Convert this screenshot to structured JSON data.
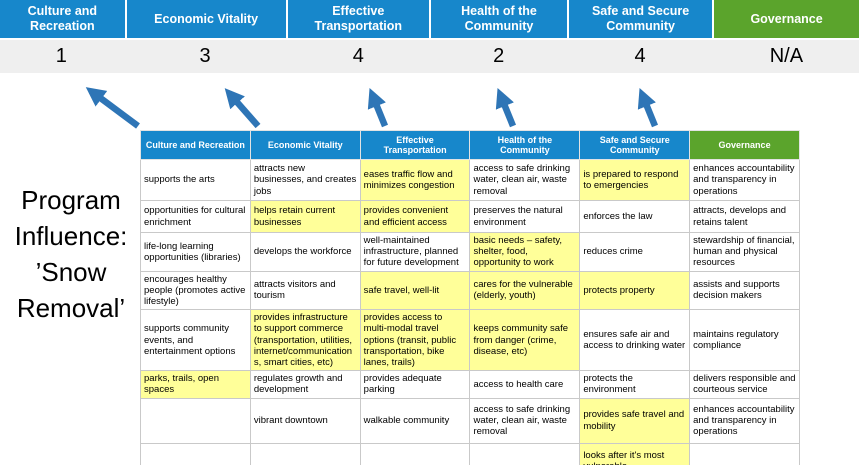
{
  "title": "Program Influence: ’Snow Removal’",
  "colors": {
    "header_blue": "#1787CB",
    "header_green": "#5BA42C",
    "highlight_yellow": "#FFFF99",
    "score_band_gray": "#EFEFEF",
    "arrow_blue": "#2E75B6"
  },
  "pillars": [
    {
      "label": "Culture and Recreation",
      "score": "1",
      "theme": "blue"
    },
    {
      "label": "Economic Vitality",
      "score": "3",
      "theme": "blue"
    },
    {
      "label": "Effective Transportation",
      "score": "4",
      "theme": "blue"
    },
    {
      "label": "Health of the Community",
      "score": "2",
      "theme": "blue"
    },
    {
      "label": "Safe and Secure Community",
      "score": "4",
      "theme": "blue"
    },
    {
      "label": "Governance",
      "score": "N/A",
      "theme": "green"
    }
  ],
  "table": {
    "headers": [
      {
        "label": "Culture and Recreation",
        "theme": "blue"
      },
      {
        "label": "Economic Vitality",
        "theme": "blue"
      },
      {
        "label": "Effective Transportation",
        "theme": "blue"
      },
      {
        "label": "Health of the Community",
        "theme": "blue"
      },
      {
        "label": "Safe and Secure Community",
        "theme": "blue"
      },
      {
        "label": "Governance",
        "theme": "green"
      }
    ],
    "rows": [
      [
        {
          "text": "supports the arts",
          "highlighted": false
        },
        {
          "text": "attracts new businesses, and creates jobs",
          "highlighted": false
        },
        {
          "text": "eases traffic flow and minimizes congestion",
          "highlighted": true
        },
        {
          "text": "access to safe drinking water, clean air, waste removal",
          "highlighted": false
        },
        {
          "text": "is prepared to respond to emergencies",
          "highlighted": true
        },
        {
          "text": "enhances accountability and transparency in operations",
          "highlighted": false
        }
      ],
      [
        {
          "text": "opportunities for cultural enrichment",
          "highlighted": false
        },
        {
          "text": "helps retain current businesses",
          "highlighted": true
        },
        {
          "text": "provides convenient and efficient access",
          "highlighted": true
        },
        {
          "text": "preserves the natural environment",
          "highlighted": false
        },
        {
          "text": "enforces the law",
          "highlighted": false
        },
        {
          "text": "attracts, develops and retains talent",
          "highlighted": false
        }
      ],
      [
        {
          "text": "life-long learning opportunities (libraries)",
          "highlighted": false
        },
        {
          "text": "develops the workforce",
          "highlighted": false
        },
        {
          "text": "well-maintained infrastructure, planned for future development",
          "highlighted": false
        },
        {
          "text": "basic needs – safety, shelter, food, opportunity to work",
          "highlighted": true
        },
        {
          "text": "reduces crime",
          "highlighted": false
        },
        {
          "text": "stewardship of financial, human and physical resources",
          "highlighted": false
        }
      ],
      [
        {
          "text": "encourages healthy people (promotes active lifestyle)",
          "highlighted": false
        },
        {
          "text": "attracts visitors and tourism",
          "highlighted": false
        },
        {
          "text": "safe travel, well-lit",
          "highlighted": true
        },
        {
          "text": "cares for the vulnerable (elderly, youth)",
          "highlighted": true
        },
        {
          "text": "protects property",
          "highlighted": true
        },
        {
          "text": "assists and supports decision makers",
          "highlighted": false
        }
      ],
      [
        {
          "text": "supports community events, and entertainment options",
          "highlighted": false
        },
        {
          "text": "provides infrastructure to support commerce (transportation, utilities, internet/communications, smart cities, etc)",
          "highlighted": true
        },
        {
          "text": "provides access to multi-modal travel options (transit, public transportation, bike lanes, trails)",
          "highlighted": true
        },
        {
          "text": "keeps community safe from danger (crime, disease, etc)",
          "highlighted": true
        },
        {
          "text": "ensures safe air and access to drinking water",
          "highlighted": false
        },
        {
          "text": "maintains regulatory compliance",
          "highlighted": false
        }
      ],
      [
        {
          "text": "parks, trails, open spaces",
          "highlighted": true
        },
        {
          "text": "regulates growth and development",
          "highlighted": false
        },
        {
          "text": "provides adequate parking",
          "highlighted": false
        },
        {
          "text": "access to health care",
          "highlighted": false
        },
        {
          "text": "protects the environment",
          "highlighted": false
        },
        {
          "text": "delivers responsible and courteous service",
          "highlighted": false
        }
      ],
      [
        {
          "text": "",
          "highlighted": false
        },
        {
          "text": "vibrant downtown",
          "highlighted": false
        },
        {
          "text": "walkable community",
          "highlighted": false
        },
        {
          "text": "access to safe drinking water, clean air, waste removal",
          "highlighted": false
        },
        {
          "text": "provides safe travel and mobility",
          "highlighted": true
        },
        {
          "text": "enhances accountability and transparency in operations",
          "highlighted": false
        }
      ],
      [
        {
          "text": "",
          "highlighted": false
        },
        {
          "text": "",
          "highlighted": false
        },
        {
          "text": "",
          "highlighted": false
        },
        {
          "text": "",
          "highlighted": false
        },
        {
          "text": "looks after it's most vulnerable",
          "highlighted": true
        },
        {
          "text": "",
          "highlighted": false
        }
      ]
    ]
  }
}
